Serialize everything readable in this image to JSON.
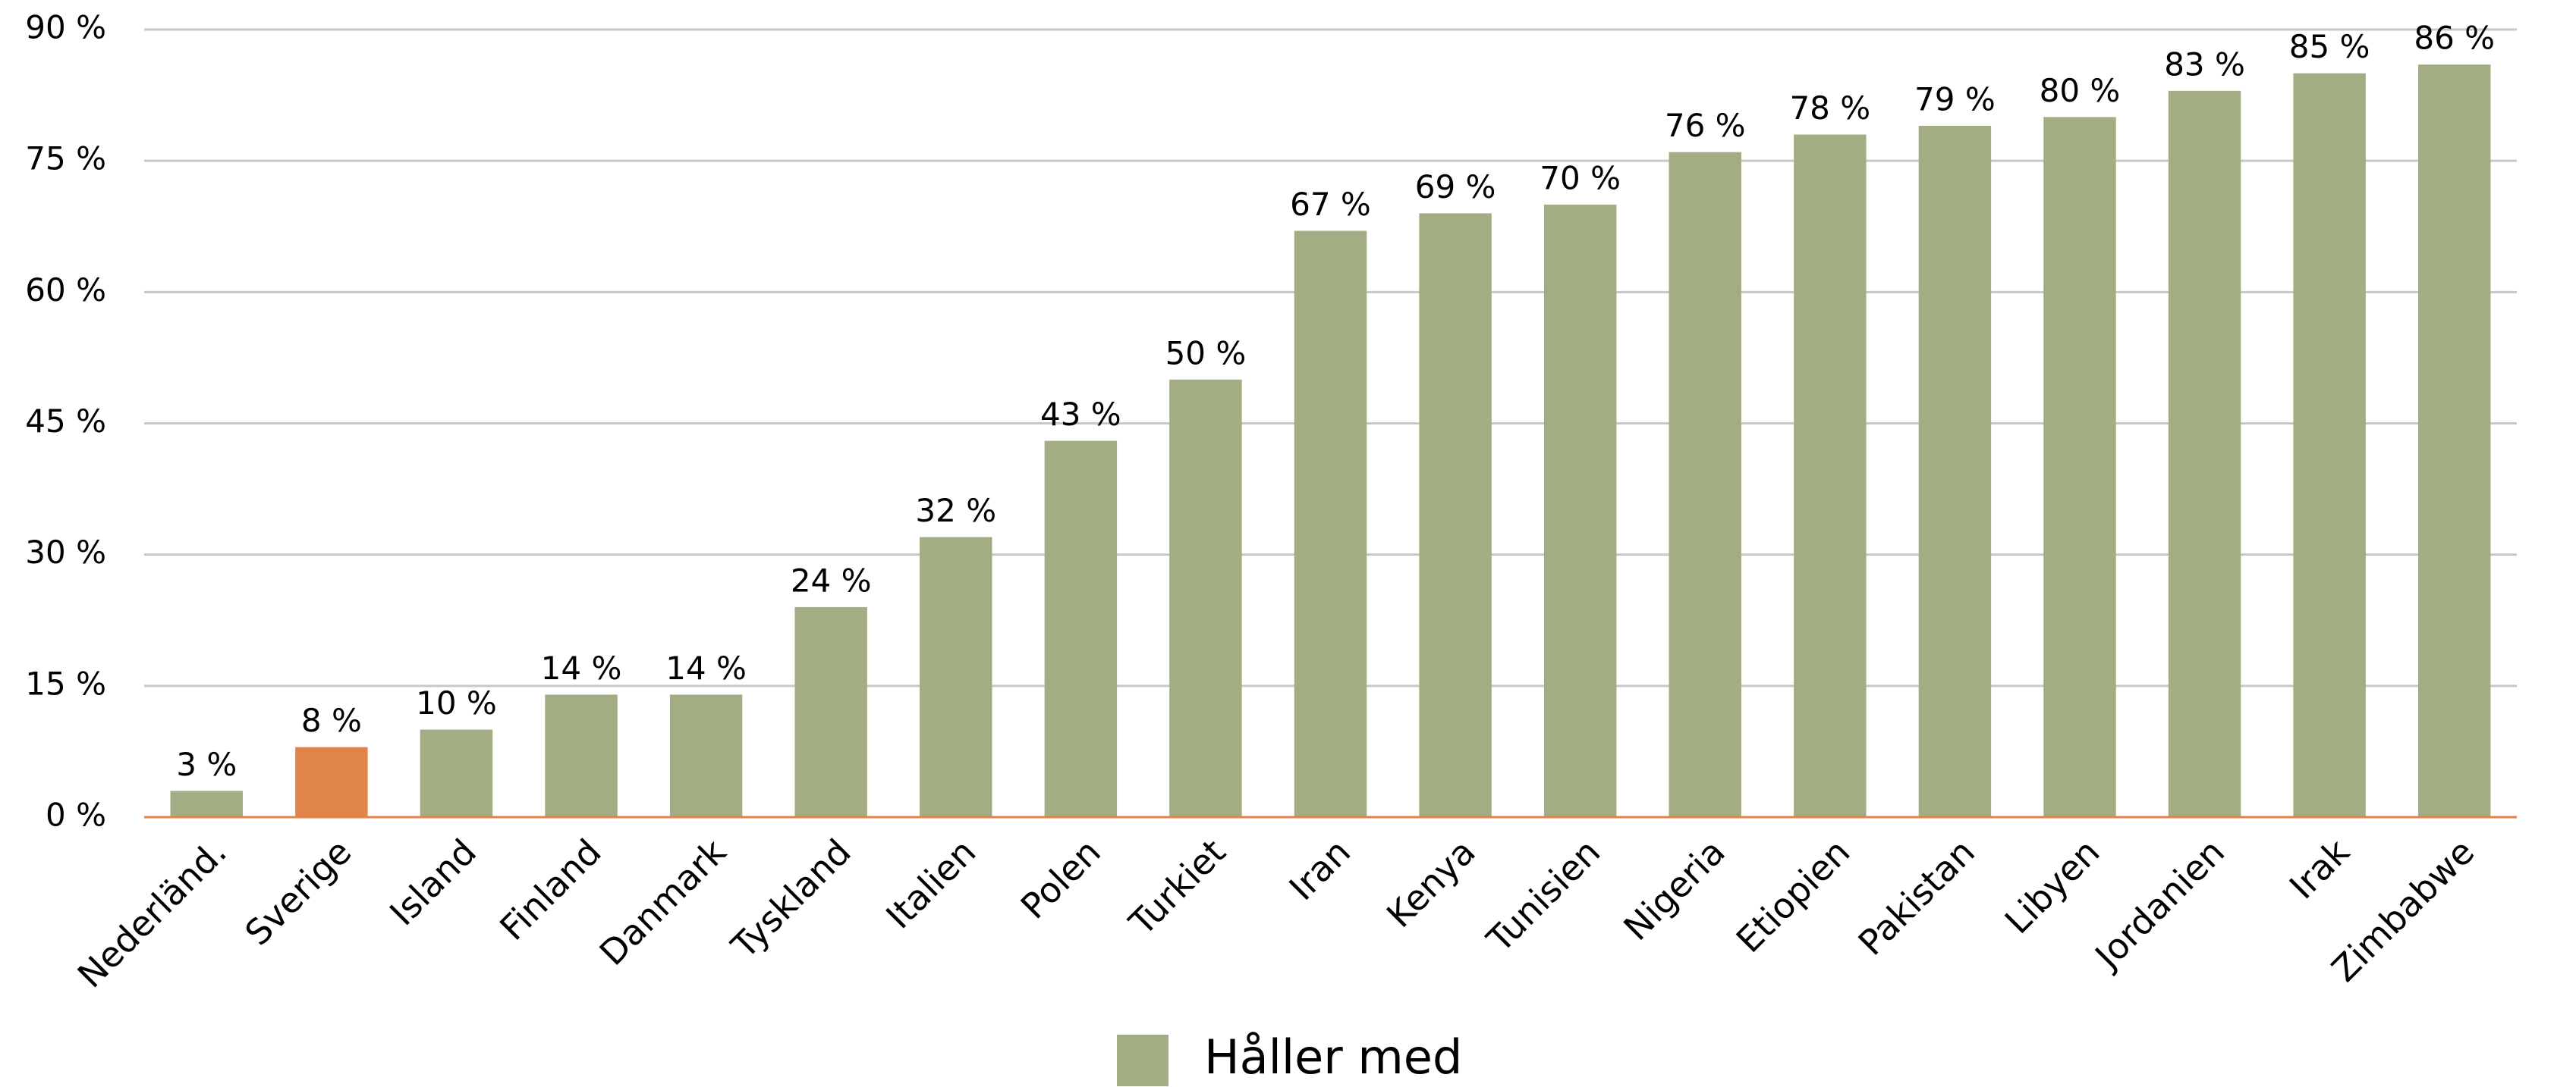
{
  "chart_data": {
    "type": "bar",
    "categories": [
      "Nederländ.",
      "Sverige",
      "Island",
      "Finland",
      "Danmark",
      "Tyskland",
      "Italien",
      "Polen",
      "Turkiet",
      "Iran",
      "Kenya",
      "Tunisien",
      "Nigeria",
      "Etiopien",
      "Pakistan",
      "Libyen",
      "Jordanien",
      "Irak",
      "Zimbabwe"
    ],
    "series": [
      {
        "name": "Håller med",
        "color": "#a3ad83",
        "colors": [
          "#a3ad83",
          "#e0844a",
          "#a3ad83",
          "#a3ad83",
          "#a3ad83",
          "#a3ad83",
          "#a3ad83",
          "#a3ad83",
          "#a3ad83",
          "#a3ad83",
          "#a3ad83",
          "#a3ad83",
          "#a3ad83",
          "#a3ad83",
          "#a3ad83",
          "#a3ad83",
          "#a3ad83",
          "#a3ad83",
          "#a3ad83"
        ],
        "values": [
          3,
          8,
          10,
          14,
          14,
          24,
          32,
          43,
          50,
          67,
          69,
          70,
          76,
          78,
          79,
          80,
          83,
          85,
          86
        ],
        "value_labels": [
          "3 %",
          "8 %",
          "10 %",
          "14 %",
          "14 %",
          "24 %",
          "32 %",
          "43 %",
          "50 %",
          "67 %",
          "69 %",
          "70 %",
          "76 %",
          "78 %",
          "79 %",
          "80 %",
          "83 %",
          "85 %",
          "86 %"
        ]
      }
    ],
    "ylim": [
      0,
      90
    ],
    "yticks": [
      {
        "value": 0,
        "label": "0 %"
      },
      {
        "value": 15,
        "label": "15 %"
      },
      {
        "value": 30,
        "label": "30 %"
      },
      {
        "value": 45,
        "label": "45 %"
      },
      {
        "value": 60,
        "label": "60 %"
      },
      {
        "value": 75,
        "label": "75 %"
      },
      {
        "value": 90,
        "label": "90 %"
      }
    ],
    "grid": true,
    "legend": "bottom"
  }
}
